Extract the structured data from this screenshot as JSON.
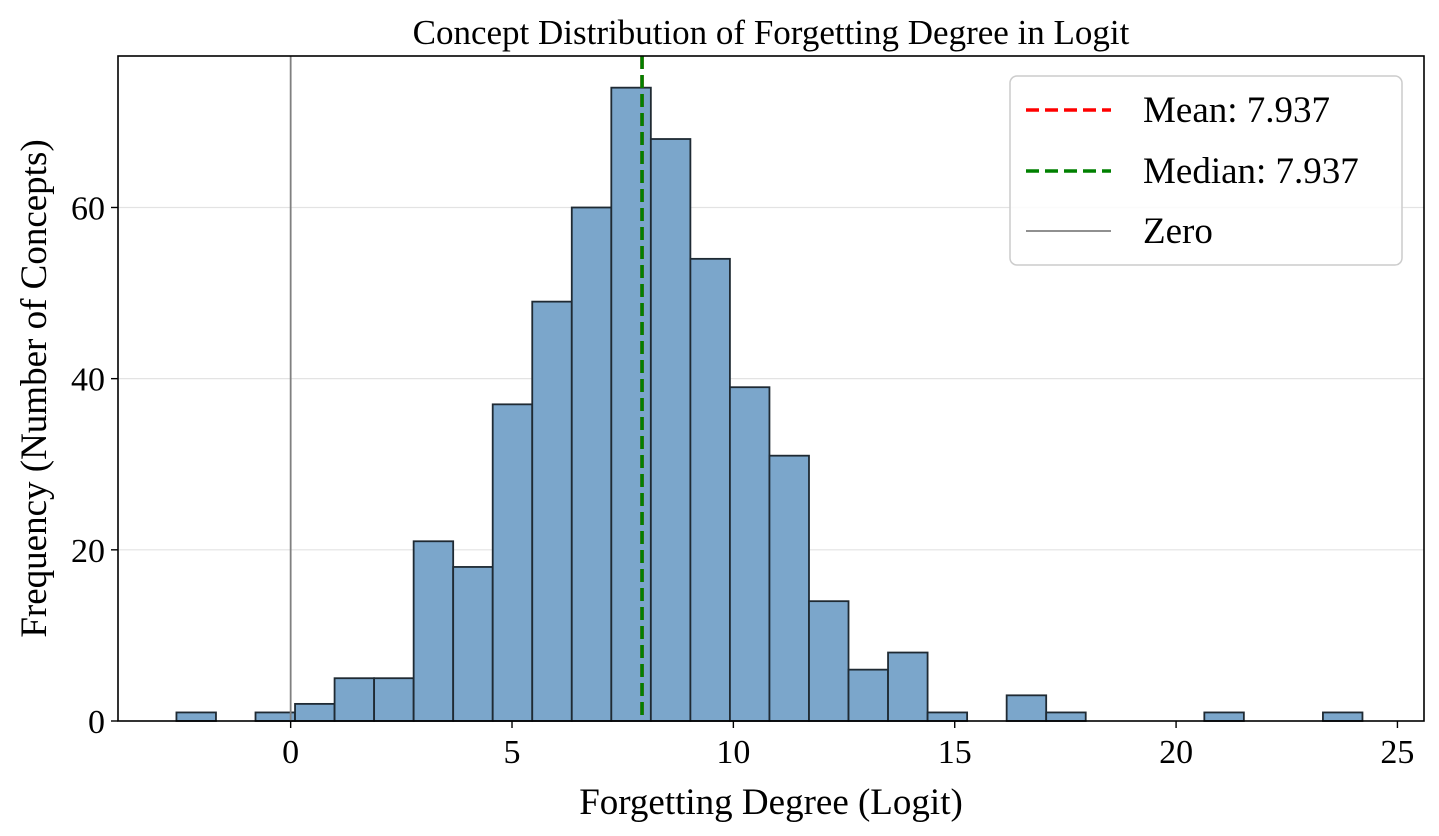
{
  "chart_data": {
    "type": "bar",
    "title": "Concept Distribution of Forgetting Degree in Logit",
    "xlabel": "Forgetting Degree (Logit)",
    "ylabel": "Frequency (Number of Concepts)",
    "xlim": [
      -3.9,
      25.6
    ],
    "ylim": [
      0,
      77.7
    ],
    "x_ticks": [
      0,
      5,
      10,
      15,
      20,
      25
    ],
    "y_ticks": [
      0,
      20,
      40,
      60
    ],
    "grid": "y",
    "bin_edges": [
      -2.58,
      -1.687,
      -0.794,
      0.099,
      0.992,
      1.885,
      2.778,
      3.671,
      4.564,
      5.457,
      6.35,
      7.243,
      8.136,
      9.029,
      9.922,
      10.815,
      11.708,
      12.601,
      13.494,
      14.387,
      15.28,
      16.173,
      17.066,
      17.959,
      18.852,
      19.745,
      20.638,
      21.531,
      22.424,
      23.317,
      24.21
    ],
    "counts": [
      1,
      0,
      1,
      2,
      5,
      5,
      21,
      18,
      37,
      49,
      60,
      74,
      68,
      54,
      39,
      31,
      14,
      6,
      8,
      1,
      0,
      3,
      1,
      0,
      0,
      0,
      1,
      0,
      0,
      1
    ],
    "bar_color": "#7ba6cb",
    "bar_edge_color": "#1f2a33",
    "mean": 7.937,
    "median": 7.937,
    "mean_color": "#ff0000",
    "median_color": "#008000",
    "zero_line": 0,
    "zero_color": "#808080",
    "legend": {
      "position": "top-right",
      "entries": [
        {
          "label": "Mean: 7.937",
          "style": "dashed",
          "color": "#ff0000"
        },
        {
          "label": "Median: 7.937",
          "style": "dashed",
          "color": "#008000"
        },
        {
          "label": "Zero",
          "style": "solid",
          "color": "#808080"
        }
      ]
    }
  }
}
